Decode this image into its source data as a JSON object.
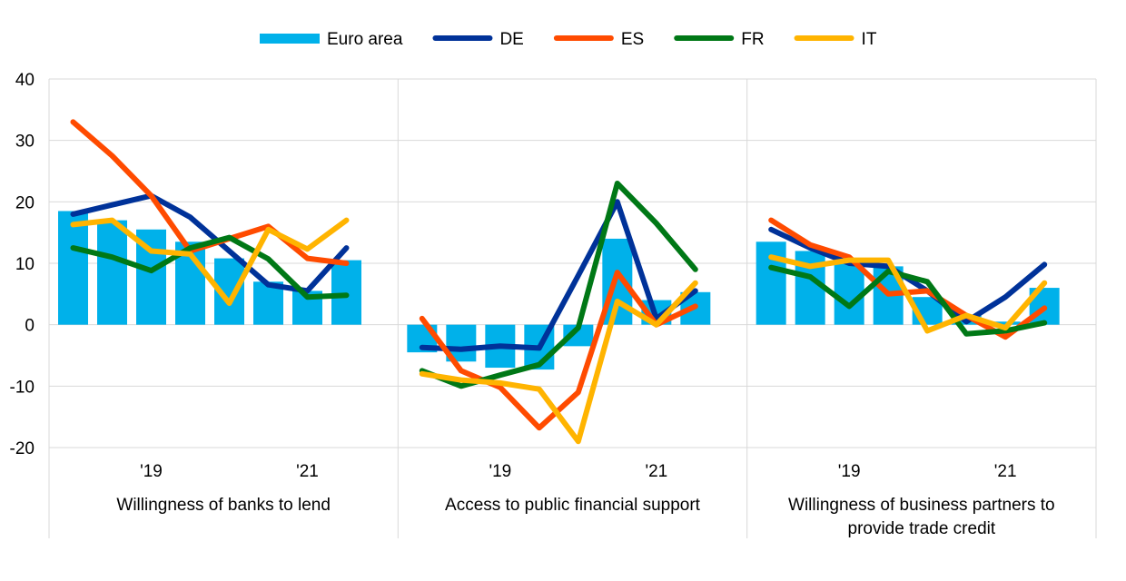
{
  "chart_data": {
    "type": "bar",
    "xlabel": "",
    "ylabel": "",
    "ylim": [
      -20,
      40
    ],
    "yticks": [
      40,
      30,
      20,
      10,
      0,
      -10,
      -20
    ],
    "grid": true,
    "legend_position": "top-center",
    "legend": [
      {
        "name": "Euro area",
        "kind": "bar",
        "color": "#00b1ea"
      },
      {
        "name": "DE",
        "kind": "line",
        "color": "#003299"
      },
      {
        "name": "ES",
        "kind": "line",
        "color": "#ff4b00"
      },
      {
        "name": "FR",
        "kind": "line",
        "color": "#007816"
      },
      {
        "name": "IT",
        "kind": "line",
        "color": "#ffb400"
      }
    ],
    "panels": [
      {
        "title": [
          "Willingness of banks to lend"
        ],
        "ticks": [
          {
            "index": 2,
            "label": "'19"
          },
          {
            "index": 6,
            "label": "'21"
          }
        ],
        "series": {
          "Euro area": [
            18.5,
            17,
            15.5,
            13.5,
            10.8,
            7,
            5.5,
            10.5
          ],
          "DE": [
            18,
            19.5,
            21,
            17.5,
            12,
            6.5,
            5.5,
            12.5
          ],
          "ES": [
            33,
            27.5,
            21,
            12,
            14,
            16,
            10.8,
            10
          ],
          "FR": [
            12.5,
            11,
            8.8,
            12.5,
            14.2,
            10.7,
            4.5,
            4.8
          ],
          "IT": [
            16.3,
            17,
            12,
            11.5,
            3.5,
            15.5,
            12.3,
            17
          ]
        }
      },
      {
        "title": [
          "Access to public financial support"
        ],
        "ticks": [
          {
            "index": 2,
            "label": "'19"
          },
          {
            "index": 6,
            "label": "'21"
          }
        ],
        "series": {
          "Euro area": [
            -4.5,
            -6,
            -7,
            -7.3,
            -3.5,
            14,
            4,
            5.3
          ],
          "DE": [
            -3.7,
            -4,
            -3.5,
            -3.8,
            8,
            20,
            1,
            5.5
          ],
          "ES": [
            1,
            -7.5,
            -10.2,
            -16.8,
            -11,
            8.5,
            0,
            3
          ],
          "FR": [
            -7.5,
            -10,
            -8.2,
            -6.5,
            -0.5,
            23,
            16.5,
            9
          ],
          "IT": [
            -8,
            -9,
            -9.5,
            -10.5,
            -19,
            3.8,
            0,
            6.8
          ]
        }
      },
      {
        "title": [
          "Willingness of business partners to",
          "provide trade credit"
        ],
        "ticks": [
          {
            "index": 2,
            "label": "'19"
          },
          {
            "index": 6,
            "label": "'21"
          }
        ],
        "series": {
          "Euro area": [
            13.5,
            12,
            10.5,
            9.5,
            4.5,
            1.5,
            0.5,
            6
          ],
          "DE": [
            15.5,
            12.5,
            10,
            9.5,
            5.5,
            0.5,
            4.5,
            9.8
          ],
          "ES": [
            17,
            13,
            11,
            5,
            5.5,
            1.5,
            -2,
            2.7
          ],
          "FR": [
            9.3,
            7.8,
            3,
            8.7,
            7,
            -1.5,
            -1,
            0.3
          ],
          "IT": [
            11,
            9.5,
            10.5,
            10.5,
            -1,
            1.5,
            -0.5,
            6.8
          ]
        }
      }
    ]
  }
}
